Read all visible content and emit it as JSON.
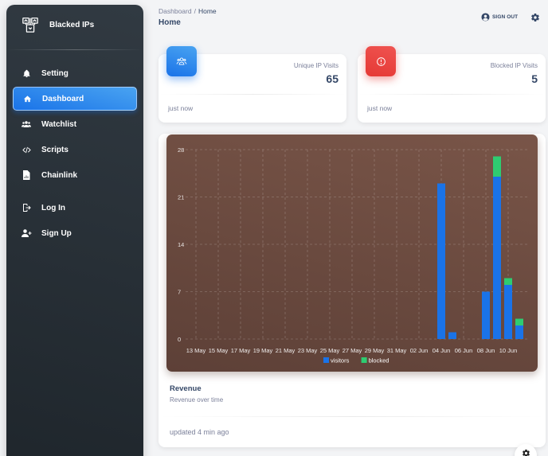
{
  "sidebar": {
    "brand": "Blacked IPs",
    "brand_icon": "boxes-icon",
    "items": [
      {
        "label": "Setting",
        "icon": "bell-icon",
        "active": false
      },
      {
        "label": "Dashboard",
        "icon": "home-icon",
        "active": true
      },
      {
        "label": "Watchlist",
        "icon": "users-icon",
        "active": false
      },
      {
        "label": "Scripts",
        "icon": "code-icon",
        "active": false
      },
      {
        "label": "Chainlink",
        "icon": "file-chart-icon",
        "active": false
      },
      {
        "label": "Log In",
        "icon": "login-icon",
        "active": false
      },
      {
        "label": "Sign Up",
        "icon": "user-plus-icon",
        "active": false
      }
    ]
  },
  "header": {
    "breadcrumb": {
      "parent": "Dashboard",
      "separator": "/",
      "current": "Home"
    },
    "title": "Home",
    "sign_out_label": "SIGN OUT",
    "sign_out_icon": "account-circle-icon",
    "settings_icon": "gear-icon"
  },
  "stats": [
    {
      "label": "Unique IP Visits",
      "value": "65",
      "footer": "just now",
      "icon": "users-icon",
      "color": "#1A73E8"
    },
    {
      "label": "Blocked IP Visits",
      "value": "5",
      "footer": "just now",
      "icon": "alert-circle-icon",
      "color": "#E53935"
    }
  ],
  "chart_card": {
    "title": "Revenue",
    "subtitle": "Revenue over time",
    "footer": "updated 4 min ago",
    "background": "#6d4c41"
  },
  "chart_data": {
    "type": "bar",
    "stacked": true,
    "title": "",
    "xlabel": "",
    "ylabel": "",
    "ylim": [
      0,
      28
    ],
    "yticks": [
      0,
      7,
      14,
      21,
      28
    ],
    "grid": true,
    "legend_position": "bottom",
    "x_tick_labels": [
      "13 May",
      "15 May",
      "17 May",
      "19 May",
      "21 May",
      "23 May",
      "25 May",
      "27 May",
      "29 May",
      "31 May",
      "02 Jun",
      "04 Jun",
      "06 Jun",
      "08 Jun",
      "10 Jun"
    ],
    "categories": [
      "13 May",
      "14 May",
      "15 May",
      "16 May",
      "17 May",
      "18 May",
      "19 May",
      "20 May",
      "21 May",
      "22 May",
      "23 May",
      "24 May",
      "25 May",
      "26 May",
      "27 May",
      "28 May",
      "29 May",
      "30 May",
      "31 May",
      "01 Jun",
      "02 Jun",
      "03 Jun",
      "04 Jun",
      "05 Jun",
      "06 Jun",
      "07 Jun",
      "08 Jun",
      "09 Jun",
      "10 Jun",
      "11 Jun"
    ],
    "series": [
      {
        "name": "visitors",
        "color": "#1A73E8",
        "values": [
          0,
          0,
          0,
          0,
          0,
          0,
          0,
          0,
          0,
          0,
          0,
          0,
          0,
          0,
          0,
          0,
          0,
          0,
          0,
          0,
          0,
          0,
          23,
          1,
          0,
          0,
          7,
          24,
          8,
          2
        ]
      },
      {
        "name": "blocked",
        "color": "#2ecc71",
        "values": [
          0,
          0,
          0,
          0,
          0,
          0,
          0,
          0,
          0,
          0,
          0,
          0,
          0,
          0,
          0,
          0,
          0,
          0,
          0,
          0,
          0,
          0,
          0,
          0,
          0,
          0,
          0,
          3,
          1,
          1
        ]
      }
    ]
  },
  "fab_icon": "gear-icon"
}
